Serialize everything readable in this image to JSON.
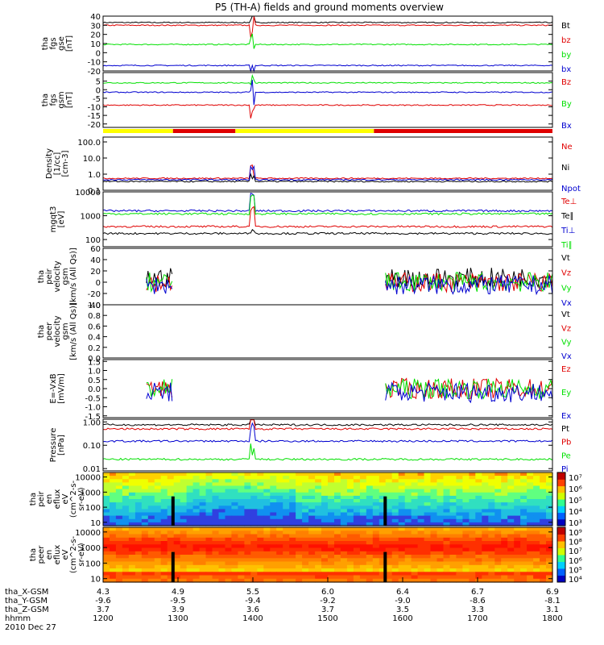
{
  "chart_data": {
    "type": "line",
    "title": "P5 (TH-A) fields and ground moments overview",
    "colors": {
      "black": "#000000",
      "red": "#e00000",
      "green": "#00e000",
      "blue": "#0000d0",
      "yellow": "#ffff00"
    },
    "xaxis": {
      "hhmm": [
        "1200",
        "1300",
        "1400",
        "1500",
        "1600",
        "1700",
        "1800"
      ],
      "rows": [
        {
          "label": "tha_X-GSM",
          "values": [
            "4.3",
            "4.9",
            "5.5",
            "6.0",
            "6.4",
            "6.7",
            "6.9"
          ]
        },
        {
          "label": "tha_Y-GSM",
          "values": [
            "-9.6",
            "-9.5",
            "-9.4",
            "-9.2",
            "-9.0",
            "-8.6",
            "-8.1"
          ]
        },
        {
          "label": "tha_Z-GSM",
          "values": [
            "3.7",
            "3.9",
            "3.6",
            "3.7",
            "3.5",
            "3.3",
            "3.1"
          ]
        },
        {
          "label": "hhmm",
          "values": [
            "1200",
            "1300",
            "1400",
            "1500",
            "1600",
            "1700",
            "1800"
          ]
        }
      ],
      "date": "2010 Dec 27"
    },
    "panels": [
      {
        "id": "fgs-gse",
        "ylabel": [
          "tha",
          "fgs",
          "gse",
          "[nT]"
        ],
        "ylim": [
          -20,
          40
        ],
        "ticks": [
          "40",
          "30",
          "20",
          "10",
          "0",
          "-10",
          "-20"
        ],
        "tickvals": [
          40,
          30,
          20,
          10,
          0,
          -10,
          -20
        ],
        "series": [
          {
            "name": "Bt",
            "color": "black",
            "level": 33
          },
          {
            "name": "bz",
            "color": "red",
            "level": 30
          },
          {
            "name": "by",
            "color": "green",
            "level": 9
          },
          {
            "name": "bx",
            "color": "blue",
            "level": -14
          }
        ]
      },
      {
        "id": "fgs-gsm",
        "ylabel": [
          "tha",
          "fgs",
          "gsm",
          "[nT]"
        ],
        "ylim": [
          -22,
          10
        ],
        "ticks": [
          "5",
          "0",
          "-5",
          "-10",
          "-15",
          "-20"
        ],
        "tickvals": [
          5,
          0,
          -5,
          -10,
          -15,
          -20
        ],
        "series": [
          {
            "name": "Bz",
            "color": "red",
            "level": -9
          },
          {
            "name": "By",
            "color": "green",
            "level": 4
          },
          {
            "name": "Bx",
            "color": "blue",
            "level": -1.5
          }
        ]
      },
      {
        "id": "density",
        "ylabel": [
          "Density",
          "[1/cc]",
          "[cm-3]"
        ],
        "log": true,
        "ylim": [
          0.1,
          200
        ],
        "ticks": [
          "100.0",
          "10.0",
          "1.0",
          "0.1"
        ],
        "tickvals": [
          100,
          10,
          1,
          0.1
        ],
        "series": [
          {
            "name": "Ne",
            "color": "red",
            "level": 0.55
          },
          {
            "name": "Ni",
            "color": "black",
            "level": 0.35
          },
          {
            "name": "Npot",
            "color": "blue",
            "level": 0.45
          }
        ]
      },
      {
        "id": "temperature",
        "ylabel": [
          "mgqt3",
          "[eV]"
        ],
        "log": true,
        "ylim": [
          50,
          10000
        ],
        "ticks": [
          "10000",
          "1000",
          "100"
        ],
        "tickvals": [
          10000,
          1000,
          100
        ],
        "series": [
          {
            "name": "Te⊥",
            "color": "red",
            "level": 350
          },
          {
            "name": "Te∥",
            "color": "black",
            "level": 180
          },
          {
            "name": "Ti⊥",
            "color": "blue",
            "level": 1600
          },
          {
            "name": "Ti∥",
            "color": "green",
            "level": 1200
          }
        ]
      },
      {
        "id": "peir-velocity",
        "ylabel": [
          "tha",
          "peir",
          "velocity",
          "gsm",
          "[km/s (All Qs)]"
        ],
        "ylim": [
          -40,
          60
        ],
        "ticks": [
          "60",
          "40",
          "20",
          "0",
          "-20",
          "-40"
        ],
        "tickvals": [
          60,
          40,
          20,
          0,
          -20,
          -40
        ],
        "series": [
          {
            "name": "Vt",
            "color": "black",
            "level": 8
          },
          {
            "name": "Vz",
            "color": "red",
            "level": 0
          },
          {
            "name": "Vy",
            "color": "green",
            "level": 0
          },
          {
            "name": "Vx",
            "color": "blue",
            "level": -5
          }
        ]
      },
      {
        "id": "peer-velocity",
        "ylabel": [
          "tha",
          "peer",
          "velocity",
          "gsm",
          "[km/s (All Qs)]"
        ],
        "ylim": [
          0,
          1
        ],
        "ticks": [
          "1.0",
          "0.8",
          "0.6",
          "0.4",
          "0.2",
          "0.0"
        ],
        "tickvals": [
          1,
          0.8,
          0.6,
          0.4,
          0.2,
          0
        ],
        "series": [
          {
            "name": "Vt",
            "color": "black"
          },
          {
            "name": "Vz",
            "color": "red"
          },
          {
            "name": "Vy",
            "color": "green"
          },
          {
            "name": "Vx",
            "color": "blue"
          }
        ]
      },
      {
        "id": "efield",
        "ylabel": [
          "E=-VxB",
          "[mV/m]"
        ],
        "ylim": [
          -1.6,
          1.6
        ],
        "ticks": [
          "1.5",
          "1.0",
          "0.5",
          "0.0",
          "-0.5",
          "-1.0",
          "-1.5"
        ],
        "tickvals": [
          1.5,
          1,
          0.5,
          0,
          -0.5,
          -1,
          -1.5
        ],
        "series": [
          {
            "name": "Ez",
            "color": "red",
            "level": 0
          },
          {
            "name": "Ey",
            "color": "green",
            "level": 0
          },
          {
            "name": "Ex",
            "color": "blue",
            "level": -0.2
          }
        ]
      },
      {
        "id": "pressure",
        "ylabel": [
          "Pressure",
          "[nPa]"
        ],
        "log": true,
        "ylim": [
          0.008,
          1.3
        ],
        "ticks": [
          "1.00",
          "0.10",
          "0.01"
        ],
        "tickvals": [
          1,
          0.1,
          0.01
        ],
        "series": [
          {
            "name": "Pt",
            "color": "black",
            "level": 0.75
          },
          {
            "name": "Pb",
            "color": "red",
            "level": 0.5
          },
          {
            "name": "Pe",
            "color": "green",
            "level": 0.025
          },
          {
            "name": "Pi",
            "color": "blue",
            "level": 0.15
          }
        ]
      },
      {
        "id": "peir-eflux",
        "ylabel": [
          "tha",
          "peir",
          "en",
          "eflux",
          "eV",
          "(cm^2-s-",
          "sr-eV)"
        ],
        "log": true,
        "ylim": [
          6,
          20000
        ],
        "ticks": [
          "10000",
          "1000",
          "100",
          "10"
        ],
        "tickvals": [
          10000,
          1000,
          100,
          10
        ],
        "colorbar": {
          "labels": [
            "10⁷",
            "10⁶",
            "10⁵",
            "10⁴",
            "10³"
          ]
        }
      },
      {
        "id": "peer-eflux",
        "ylabel": [
          "tha",
          "peer",
          "en",
          "eflux",
          "eV",
          "(cm^2-s-",
          "sr-eV)"
        ],
        "log": true,
        "ylim": [
          6,
          20000
        ],
        "ticks": [
          "10000",
          "1000",
          "100",
          "10"
        ],
        "tickvals": [
          10000,
          1000,
          100,
          10
        ],
        "colorbar": {
          "labels": [
            "10⁹",
            "10⁸",
            "10⁷",
            "10⁶",
            "10⁵",
            "10⁴"
          ]
        }
      }
    ],
    "mode_bar": {
      "segments": [
        {
          "from": "1200",
          "to": "1256",
          "color": "yellow"
        },
        {
          "from": "1256",
          "to": "1346",
          "color": "red"
        },
        {
          "from": "1346",
          "to": "1537",
          "color": "yellow"
        },
        {
          "from": "1537",
          "to": "1800",
          "color": "red"
        }
      ]
    },
    "data_gaps": [
      {
        "from": "1256",
        "to": "1334"
      },
      {
        "from": "1458",
        "to": "1546"
      }
    ]
  }
}
